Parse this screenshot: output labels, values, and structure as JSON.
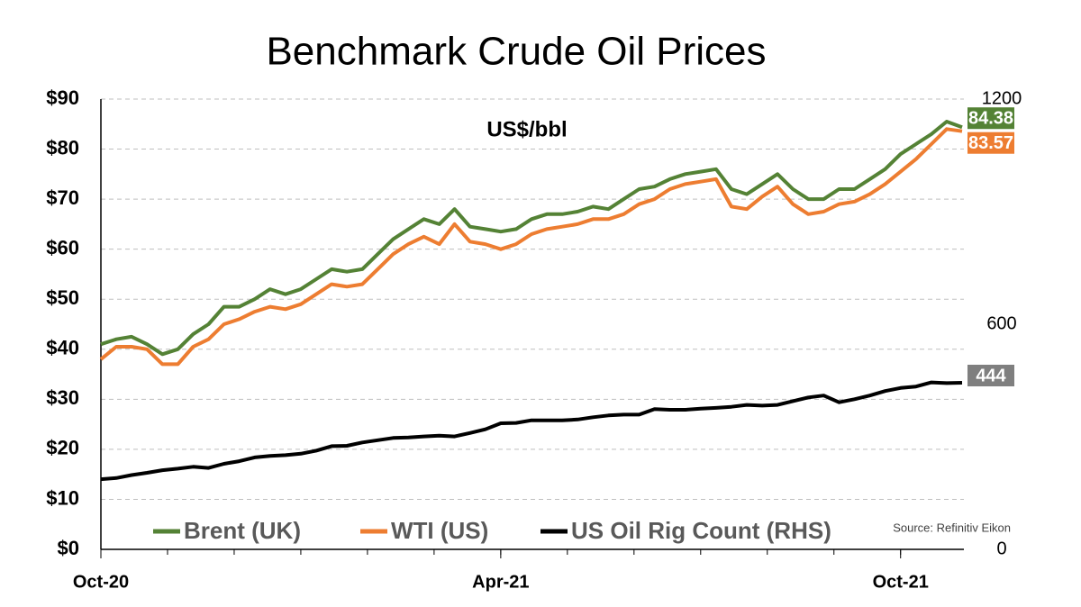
{
  "chart_data": {
    "type": "line",
    "title": "Benchmark Crude Oil Prices",
    "subtitle": "US$/bbl",
    "source": "Source: Refinitiv Eikon",
    "categories": [
      "Oct-20",
      null,
      null,
      null,
      null,
      null,
      null,
      null,
      null,
      null,
      null,
      null,
      null,
      null,
      null,
      null,
      null,
      null,
      null,
      null,
      null,
      null,
      null,
      null,
      null,
      null,
      "Apr-21",
      null,
      null,
      null,
      null,
      null,
      null,
      null,
      null,
      null,
      null,
      null,
      null,
      null,
      null,
      null,
      null,
      null,
      null,
      null,
      null,
      null,
      null,
      null,
      null,
      null,
      "Oct-21",
      null,
      null,
      null,
      null
    ],
    "series": [
      {
        "name": "Brent (UK)",
        "color": "#548235",
        "values": [
          41,
          42,
          42.5,
          41,
          39,
          40,
          43,
          45,
          48.5,
          48.5,
          50,
          52,
          51,
          52,
          54,
          56,
          55.5,
          56,
          59,
          62,
          64,
          66,
          65,
          68,
          64.5,
          64,
          63.5,
          64,
          66,
          67,
          67,
          67.5,
          68.5,
          68,
          70,
          72,
          72.5,
          74,
          75,
          75.5,
          76,
          72,
          71,
          73,
          75,
          72,
          70,
          70,
          72,
          72,
          74,
          76,
          79,
          81,
          83,
          85.5,
          84.38
        ]
      },
      {
        "name": "WTI (US)",
        "color": "#ed7d31",
        "values": [
          38,
          40.5,
          40.5,
          40,
          37,
          37,
          40.5,
          42,
          45,
          46,
          47.5,
          48.5,
          48,
          49,
          51,
          53,
          52.5,
          53,
          56,
          59,
          61,
          62.5,
          61,
          65,
          61.5,
          61,
          60,
          61,
          63,
          64,
          64.5,
          65,
          66,
          66,
          67,
          69,
          70,
          72,
          73,
          73.5,
          74,
          68.5,
          68,
          70.5,
          72.5,
          69,
          67,
          67.5,
          69,
          69.5,
          71,
          73,
          75.5,
          78,
          81,
          84,
          83.57
        ]
      },
      {
        "name": "US Oil Rig Count (RHS)",
        "color": "#000000",
        "axis": "y2",
        "label_color": "#7f7f7f",
        "values": [
          187,
          190,
          198,
          204,
          211,
          215,
          220,
          217,
          228,
          235,
          245,
          249,
          251,
          255,
          263,
          275,
          276,
          285,
          291,
          297,
          298,
          301,
          303,
          301,
          310,
          320,
          336,
          337,
          344,
          344,
          344,
          346,
          352,
          357,
          359,
          359,
          374,
          372,
          372,
          375,
          377,
          380,
          385,
          383,
          385,
          395,
          405,
          410,
          392,
          400,
          410,
          422,
          430,
          434,
          445,
          443,
          444
        ]
      }
    ],
    "ylim": [
      0,
      90
    ],
    "yticks": [
      {
        "value": 0,
        "label": "$0"
      },
      {
        "value": 10,
        "label": "$10"
      },
      {
        "value": 20,
        "label": "$20"
      },
      {
        "value": 30,
        "label": "$30"
      },
      {
        "value": 40,
        "label": "$40"
      },
      {
        "value": 50,
        "label": "$50"
      },
      {
        "value": 60,
        "label": "$60"
      },
      {
        "value": 70,
        "label": "$70"
      },
      {
        "value": 80,
        "label": "$80"
      },
      {
        "value": 90,
        "label": "$90"
      }
    ],
    "y2lim": [
      0,
      1200
    ],
    "y2ticks": [
      0,
      600,
      1200
    ],
    "grid": true,
    "legend": "bottom"
  }
}
